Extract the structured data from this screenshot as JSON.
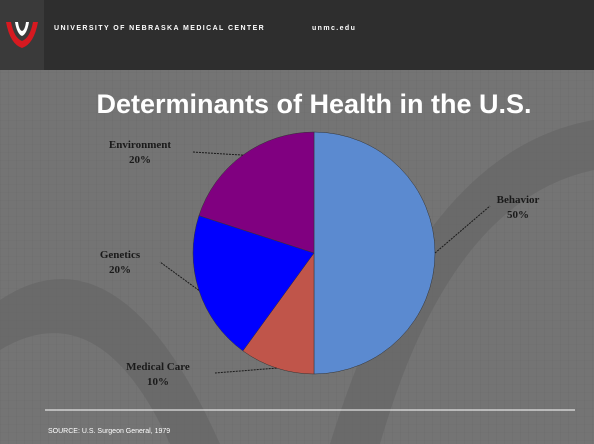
{
  "header": {
    "institution": "UNIVERSITY OF NEBRASKA MEDICAL CENTER",
    "url": "unmc.edu"
  },
  "chart_data": {
    "type": "pie",
    "title": "Determinants of Health in the U.S.",
    "categories": [
      "Behavior",
      "Medical Care",
      "Genetics",
      "Environment"
    ],
    "values": [
      50,
      10,
      20,
      20
    ],
    "value_labels": [
      "50%",
      "10%",
      "20%",
      "20%"
    ],
    "colors": [
      "#5b8ad0",
      "#c0554a",
      "#0000ff",
      "#800080"
    ]
  },
  "footer": {
    "source": "SOURCE: U.S. Surgeon General, 1979"
  }
}
